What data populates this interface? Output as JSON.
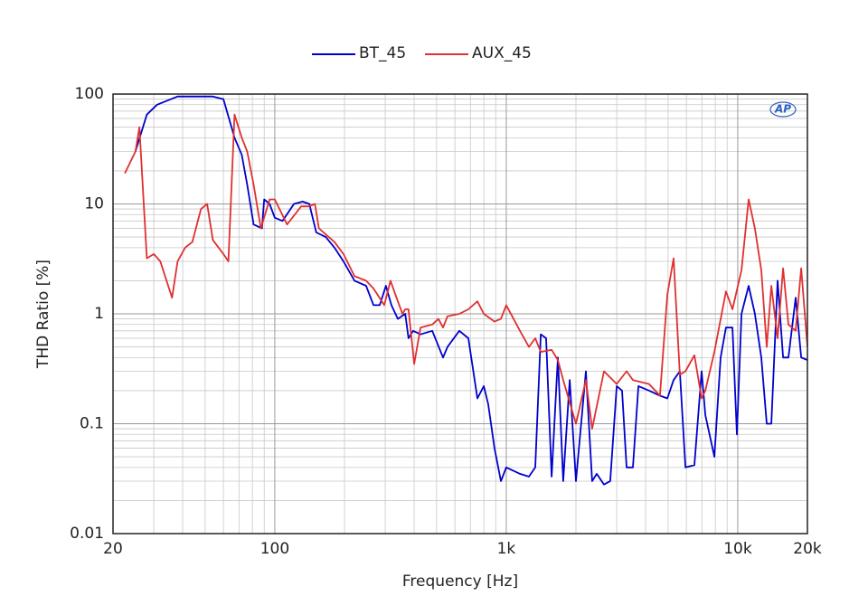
{
  "chart_data": {
    "type": "line",
    "x_label": "Frequency [Hz]",
    "y_label": "THD Ratio [%]",
    "badge": "AP",
    "xscale": "log",
    "yscale": "log",
    "grid": true,
    "legend": "top",
    "xlim": [
      20,
      20000
    ],
    "ylim": [
      0.01,
      100
    ],
    "xticks": [
      20,
      100,
      {
        "value": 1000,
        "label": "1k"
      },
      {
        "value": 10000,
        "label": "10k"
      },
      {
        "value": 20000,
        "label": "20k"
      }
    ],
    "yticks": [
      0.01,
      0.1,
      1,
      10,
      100
    ],
    "series": [
      {
        "name": "BT_45",
        "color": "#0000cc",
        "x": [
          25,
          28,
          31,
          38,
          54,
          60,
          67,
          72,
          76,
          81,
          88,
          90,
          95,
          100,
          108,
          121,
          132,
          141,
          151,
          166,
          181,
          198,
          221,
          248,
          267,
          284,
          302,
          319,
          340,
          366,
          378,
          396,
          426,
          479,
          533,
          557,
          627,
          686,
          750,
          800,
          836,
          889,
          948,
          1000,
          1146,
          1253,
          1334,
          1409,
          1486,
          1570,
          1671,
          1762,
          1880,
          2000,
          2208,
          2350,
          2460,
          2643,
          2812,
          3000,
          3164,
          3311,
          3524,
          3724,
          4140,
          4613,
          4966,
          5285,
          5624,
          5944,
          6500,
          6985,
          7245,
          7926,
          8434,
          8896,
          9485,
          9914,
          10377,
          11143,
          11862,
          12647,
          13339,
          13966,
          14861,
          15704,
          16557,
          17786,
          18793,
          20000
        ],
        "values": [
          30,
          65,
          80,
          95,
          95,
          90,
          40,
          28,
          15,
          6.5,
          6,
          11,
          10,
          7.5,
          7,
          10,
          10.5,
          10,
          5.5,
          5,
          4,
          3,
          2,
          1.8,
          1.2,
          1.2,
          1.8,
          1.2,
          0.9,
          1,
          0.6,
          0.7,
          0.65,
          0.7,
          0.4,
          0.5,
          0.7,
          0.6,
          0.17,
          0.22,
          0.15,
          0.06,
          0.03,
          0.04,
          0.035,
          0.033,
          0.04,
          0.65,
          0.6,
          0.033,
          0.4,
          0.03,
          0.25,
          0.03,
          0.3,
          0.03,
          0.035,
          0.028,
          0.03,
          0.22,
          0.2,
          0.04,
          0.04,
          0.22,
          0.2,
          0.18,
          0.17,
          0.25,
          0.3,
          0.04,
          0.042,
          0.3,
          0.12,
          0.05,
          0.4,
          0.75,
          0.75,
          0.08,
          1,
          1.8,
          1,
          0.4,
          0.1,
          0.1,
          2,
          0.4,
          0.4,
          1.4,
          0.4,
          0.38
        ]
      },
      {
        "name": "AUX_45",
        "color": "#e03030",
        "x": [
          22.5,
          25,
          26,
          28,
          30,
          32,
          36,
          38,
          41,
          44,
          48,
          51,
          54,
          60,
          63,
          67,
          72,
          76,
          81,
          87,
          95,
          100,
          113,
          130,
          141,
          149,
          155,
          181,
          198,
          221,
          248,
          267,
          297,
          316,
          340,
          356,
          366,
          378,
          400,
          426,
          479,
          509,
          533,
          557,
          627,
          686,
          750,
          800,
          889,
          948,
          1000,
          1146,
          1253,
          1334,
          1409,
          1570,
          1671,
          1762,
          2000,
          2208,
          2350,
          2643,
          3000,
          3311,
          3524,
          4140,
          4613,
          4966,
          5285,
          5624,
          5944,
          6500,
          6985,
          7245,
          7926,
          8896,
          9485,
          10377,
          11143,
          11862,
          12647,
          13339,
          13966,
          14861,
          15704,
          16557,
          17786,
          18793,
          20000
        ],
        "values": [
          19,
          30,
          50,
          3.2,
          3.5,
          3,
          1.4,
          3,
          4,
          4.5,
          9,
          10,
          4.7,
          3.5,
          3,
          65,
          40,
          30,
          15,
          6,
          11,
          11,
          6.5,
          9.5,
          9.5,
          10,
          6,
          4.5,
          3.5,
          2.2,
          2,
          1.7,
          1.2,
          2,
          1.3,
          1,
          1.1,
          1.1,
          0.35,
          0.75,
          0.8,
          0.9,
          0.75,
          0.95,
          1,
          1.1,
          1.3,
          1,
          0.85,
          0.9,
          1.2,
          0.7,
          0.5,
          0.6,
          0.45,
          0.47,
          0.38,
          0.25,
          0.1,
          0.25,
          0.09,
          0.3,
          0.23,
          0.3,
          0.25,
          0.23,
          0.18,
          1.5,
          3.2,
          0.28,
          0.3,
          0.42,
          0.17,
          0.2,
          0.45,
          1.6,
          1.1,
          2.5,
          11,
          6,
          2.5,
          0.5,
          1.8,
          0.6,
          2.6,
          0.8,
          0.7,
          2.6,
          0.5
        ]
      }
    ]
  }
}
